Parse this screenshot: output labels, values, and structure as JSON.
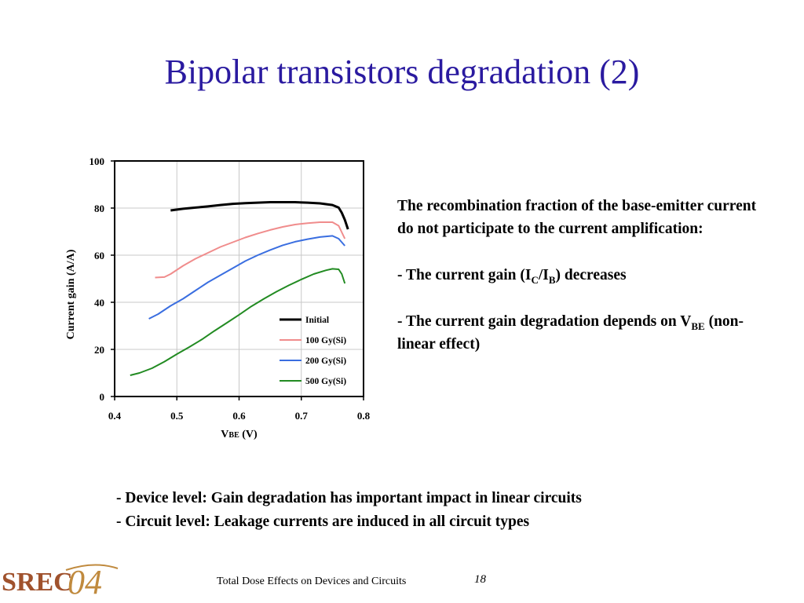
{
  "slide": {
    "title": "Bipolar transistors degradation (2)",
    "explanation": {
      "intro": "The recombination fraction of the base-emitter current do not participate to the current amplification:",
      "point1_prefix": "- The current gain (I",
      "point1_sub1": "C",
      "point1_mid": "/I",
      "point1_sub2": "B",
      "point1_suffix": ") decreases",
      "point2_prefix": "- The current gain degradation depends on V",
      "point2_sub": "BE",
      "point2_suffix": " (non-linear effect)"
    },
    "bullets": [
      "- Device level: Gain degradation has important impact in linear circuits",
      "- Circuit level: Leakage currents are induced in all circuit types"
    ],
    "footer": "Total Dose Effects on Devices and Circuits",
    "page_number": "18",
    "logo_text": "SREC04"
  },
  "chart_data": {
    "type": "line",
    "title": "",
    "xlabel_main": "V",
    "xlabel_sub": "BE",
    "xlabel_unit": " (V)",
    "ylabel": "Current gain (A/A)",
    "xlim": [
      0.4,
      0.8
    ],
    "ylim": [
      0,
      100
    ],
    "xticks": [
      "0.4",
      "0.5",
      "0.6",
      "0.7",
      "0.8"
    ],
    "yticks": [
      "0",
      "20",
      "40",
      "60",
      "80",
      "100"
    ],
    "grid": true,
    "legend_position": "bottom-right",
    "series": [
      {
        "name": "Initial",
        "color": "#000000",
        "points": [
          [
            0.49,
            79
          ],
          [
            0.51,
            79.7
          ],
          [
            0.53,
            80.2
          ],
          [
            0.55,
            80.7
          ],
          [
            0.57,
            81.3
          ],
          [
            0.59,
            81.8
          ],
          [
            0.61,
            82.1
          ],
          [
            0.63,
            82.3
          ],
          [
            0.65,
            82.5
          ],
          [
            0.67,
            82.5
          ],
          [
            0.69,
            82.5
          ],
          [
            0.71,
            82.3
          ],
          [
            0.73,
            82
          ],
          [
            0.75,
            81.3
          ],
          [
            0.76,
            80.2
          ],
          [
            0.765,
            78
          ],
          [
            0.77,
            75
          ],
          [
            0.775,
            71
          ]
        ]
      },
      {
        "name": "100 Gy(Si)",
        "color": "#f08c8c",
        "points": [
          [
            0.465,
            50.5
          ],
          [
            0.48,
            50.7
          ],
          [
            0.49,
            52
          ],
          [
            0.51,
            55.5
          ],
          [
            0.53,
            58.5
          ],
          [
            0.55,
            61
          ],
          [
            0.57,
            63.5
          ],
          [
            0.59,
            65.5
          ],
          [
            0.61,
            67.5
          ],
          [
            0.63,
            69.2
          ],
          [
            0.65,
            70.7
          ],
          [
            0.67,
            72
          ],
          [
            0.69,
            73
          ],
          [
            0.71,
            73.6
          ],
          [
            0.73,
            74
          ],
          [
            0.75,
            74
          ],
          [
            0.76,
            72.5
          ],
          [
            0.77,
            67
          ]
        ]
      },
      {
        "name": "200 Gy(Si)",
        "color": "#3a6ee0",
        "points": [
          [
            0.455,
            33
          ],
          [
            0.47,
            35
          ],
          [
            0.49,
            38.5
          ],
          [
            0.51,
            41.5
          ],
          [
            0.53,
            45
          ],
          [
            0.55,
            48.5
          ],
          [
            0.57,
            51.5
          ],
          [
            0.59,
            54.5
          ],
          [
            0.61,
            57.5
          ],
          [
            0.63,
            60
          ],
          [
            0.65,
            62.2
          ],
          [
            0.67,
            64.2
          ],
          [
            0.69,
            65.7
          ],
          [
            0.71,
            66.8
          ],
          [
            0.73,
            67.7
          ],
          [
            0.75,
            68.2
          ],
          [
            0.76,
            67
          ],
          [
            0.77,
            64
          ]
        ]
      },
      {
        "name": "500 Gy(Si)",
        "color": "#228b22",
        "points": [
          [
            0.425,
            9
          ],
          [
            0.44,
            10
          ],
          [
            0.46,
            12
          ],
          [
            0.48,
            14.8
          ],
          [
            0.5,
            18
          ],
          [
            0.52,
            21
          ],
          [
            0.54,
            24.2
          ],
          [
            0.56,
            27.8
          ],
          [
            0.58,
            31.2
          ],
          [
            0.6,
            34.7
          ],
          [
            0.62,
            38.3
          ],
          [
            0.64,
            41.5
          ],
          [
            0.66,
            44.5
          ],
          [
            0.68,
            47.2
          ],
          [
            0.7,
            49.7
          ],
          [
            0.72,
            52
          ],
          [
            0.74,
            53.6
          ],
          [
            0.75,
            54.2
          ],
          [
            0.76,
            54
          ],
          [
            0.765,
            52
          ],
          [
            0.77,
            48
          ]
        ]
      }
    ]
  }
}
